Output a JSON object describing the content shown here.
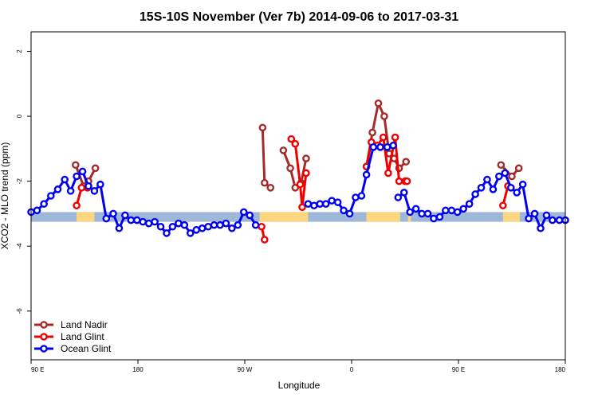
{
  "chart_data": {
    "type": "line",
    "title": "15S-10S November (Ver 7b)   2014-09-06 to 2017-03-31",
    "xlabel": "Longitude",
    "ylabel": "XCO2 - MLO trend (ppm)",
    "xlim": [
      0,
      540
    ],
    "ylim": [
      -7.5,
      2.6
    ],
    "x_ticks": [
      {
        "value": 0,
        "label": "90 E"
      },
      {
        "value": 108,
        "label": "180"
      },
      {
        "value": 216,
        "label": "90 W"
      },
      {
        "value": 324,
        "label": "0"
      },
      {
        "value": 432,
        "label": "90 E"
      },
      {
        "value": 540,
        "label": "180"
      }
    ],
    "y_ticks": [
      {
        "value": 2,
        "label": "2"
      },
      {
        "value": 0,
        "label": "0"
      },
      {
        "value": -2,
        "label": "-2"
      },
      {
        "value": -4,
        "label": "-4"
      },
      {
        "value": -6,
        "label": "-6"
      }
    ],
    "band": {
      "y_range": [
        -3.25,
        -2.95
      ],
      "ocean_color": "#9fb8d9",
      "land_color": "#fcd77f",
      "land_segments": [
        [
          46,
          64
        ],
        [
          231,
          280
        ],
        [
          339,
          373
        ],
        [
          381,
          384
        ],
        [
          477,
          494
        ]
      ]
    },
    "legend_position": "bottom-left",
    "series": [
      {
        "name": "Land Nadir",
        "color": "#a52a2a",
        "segments": [
          [
            [
              45,
              -1.5
            ],
            [
              53,
              -2.15
            ],
            [
              58,
              -2.0
            ],
            [
              65,
              -1.6
            ]
          ],
          [
            [
              234,
              -0.35
            ],
            [
              236,
              -2.05
            ],
            [
              242,
              -2.2
            ]
          ],
          [
            [
              255,
              -1.05
            ],
            [
              262,
              -1.6
            ],
            [
              267,
              -2.2
            ],
            [
              273,
              -2.05
            ],
            [
              278,
              -1.3
            ]
          ],
          [
            [
              339,
              -1.55
            ],
            [
              345,
              -0.5
            ],
            [
              351,
              0.4
            ],
            [
              357,
              0.0
            ],
            [
              362,
              -1.15
            ],
            [
              367,
              -1.3
            ],
            [
              372,
              -1.6
            ],
            [
              379,
              -1.4
            ]
          ],
          [
            [
              475,
              -1.5
            ],
            [
              486,
              -1.85
            ],
            [
              493,
              -1.6
            ]
          ]
        ]
      },
      {
        "name": "Land Glint",
        "color": "#ee0000",
        "segments": [
          [
            [
              46,
              -2.75
            ],
            [
              51,
              -2.2
            ],
            [
              57,
              -2.2
            ]
          ],
          [
            [
              233,
              -3.4
            ],
            [
              236,
              -3.8
            ]
          ],
          [
            [
              263,
              -0.7
            ],
            [
              267,
              -0.85
            ],
            [
              272,
              -2.1
            ],
            [
              274,
              -2.8
            ],
            [
              278,
              -1.75
            ]
          ],
          [
            [
              339,
              -1.55
            ],
            [
              344,
              -0.8
            ],
            [
              350,
              -0.9
            ],
            [
              356,
              -0.65
            ],
            [
              361,
              -1.75
            ],
            [
              368,
              -0.65
            ],
            [
              372,
              -2.0
            ],
            [
              378,
              -2.0
            ],
            [
              380,
              -2.0
            ]
          ],
          [
            [
              477,
              -2.75
            ],
            [
              482,
              -2.15
            ]
          ]
        ]
      },
      {
        "name": "Ocean Glint",
        "color": "#0000ee",
        "segments": [
          [
            [
              0,
              -2.95
            ],
            [
              6,
              -2.9
            ],
            [
              13,
              -2.7
            ],
            [
              20,
              -2.45
            ],
            [
              27,
              -2.25
            ],
            [
              34,
              -1.95
            ],
            [
              40,
              -2.3
            ],
            [
              46,
              -1.85
            ],
            [
              52,
              -1.7
            ],
            [
              58,
              -2.15
            ],
            [
              64,
              -2.3
            ],
            [
              70,
              -2.1
            ],
            [
              76,
              -3.15
            ],
            [
              83,
              -3.0
            ],
            [
              89,
              -3.45
            ],
            [
              95,
              -3.05
            ],
            [
              101,
              -3.2
            ],
            [
              107,
              -3.2
            ],
            [
              113,
              -3.25
            ],
            [
              119,
              -3.3
            ],
            [
              125,
              -3.25
            ],
            [
              131,
              -3.4
            ],
            [
              137,
              -3.6
            ],
            [
              143,
              -3.4
            ],
            [
              149,
              -3.3
            ],
            [
              155,
              -3.35
            ],
            [
              161,
              -3.6
            ],
            [
              167,
              -3.5
            ],
            [
              173,
              -3.45
            ],
            [
              179,
              -3.4
            ],
            [
              185,
              -3.35
            ],
            [
              191,
              -3.35
            ],
            [
              197,
              -3.3
            ],
            [
              203,
              -3.45
            ],
            [
              209,
              -3.35
            ],
            [
              215,
              -2.95
            ],
            [
              221,
              -3.05
            ],
            [
              227,
              -3.35
            ]
          ],
          [
            [
              280,
              -2.7
            ],
            [
              286,
              -2.75
            ],
            [
              292,
              -2.7
            ],
            [
              298,
              -2.7
            ],
            [
              304,
              -2.6
            ],
            [
              310,
              -2.65
            ],
            [
              316,
              -2.9
            ],
            [
              322,
              -3.0
            ],
            [
              328,
              -2.5
            ],
            [
              334,
              -2.45
            ],
            [
              339,
              -1.8
            ],
            [
              346,
              -0.95
            ],
            [
              353,
              -0.95
            ],
            [
              360,
              -0.95
            ],
            [
              366,
              -0.9
            ]
          ],
          [
            [
              371,
              -2.5
            ],
            [
              377,
              -2.35
            ],
            [
              383,
              -2.95
            ],
            [
              389,
              -2.85
            ],
            [
              395,
              -3.0
            ],
            [
              401,
              -3.0
            ],
            [
              407,
              -3.15
            ],
            [
              413,
              -3.1
            ],
            [
              419,
              -2.9
            ],
            [
              425,
              -2.9
            ],
            [
              431,
              -2.95
            ],
            [
              437,
              -2.85
            ],
            [
              443,
              -2.7
            ],
            [
              449,
              -2.4
            ],
            [
              455,
              -2.2
            ],
            [
              461,
              -1.95
            ],
            [
              467,
              -2.25
            ],
            [
              473,
              -1.85
            ],
            [
              479,
              -1.75
            ],
            [
              485,
              -2.2
            ],
            [
              491,
              -2.35
            ],
            [
              497,
              -2.1
            ],
            [
              503,
              -3.15
            ],
            [
              509,
              -3.0
            ],
            [
              515,
              -3.45
            ],
            [
              521,
              -3.05
            ],
            [
              527,
              -3.2
            ],
            [
              534,
              -3.2
            ],
            [
              540,
              -3.2
            ]
          ]
        ]
      }
    ]
  }
}
